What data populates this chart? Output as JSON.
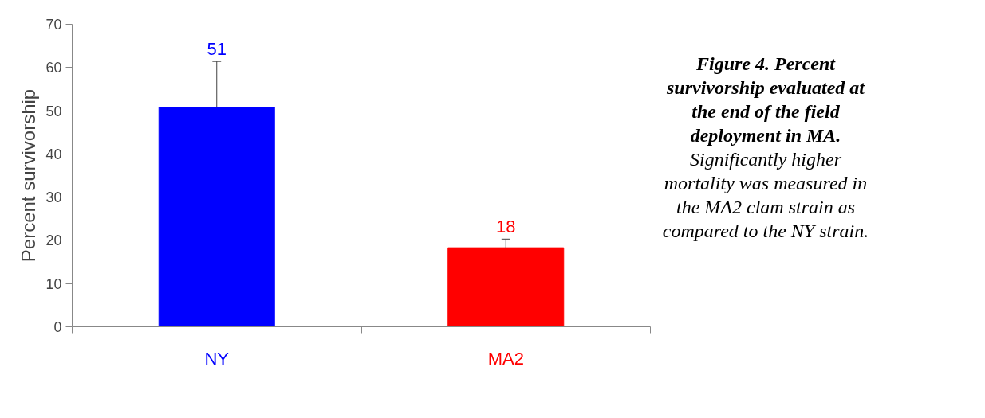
{
  "chart_data": {
    "type": "bar",
    "categories": [
      "NY",
      "MA2"
    ],
    "values": [
      50.8,
      18.3
    ],
    "colors": [
      "#0000ff",
      "#ff0000"
    ],
    "errors": [
      [
        50.8,
        61.4
      ],
      [
        18.3,
        20.3
      ]
    ],
    "value_labels": [
      "51",
      "18"
    ],
    "ylabel": "Percent survivorship",
    "ylim": [
      0,
      70
    ],
    "yticks": [
      0,
      10,
      20,
      30,
      40,
      50,
      60,
      70
    ],
    "grid": false,
    "annotations": [
      "Figure 4. Percent survivorship evaluated at the end of the field deployment in MA.",
      "Significantly higher mortality was measured in the MA2 clam strain as compared to the NY strain."
    ]
  }
}
